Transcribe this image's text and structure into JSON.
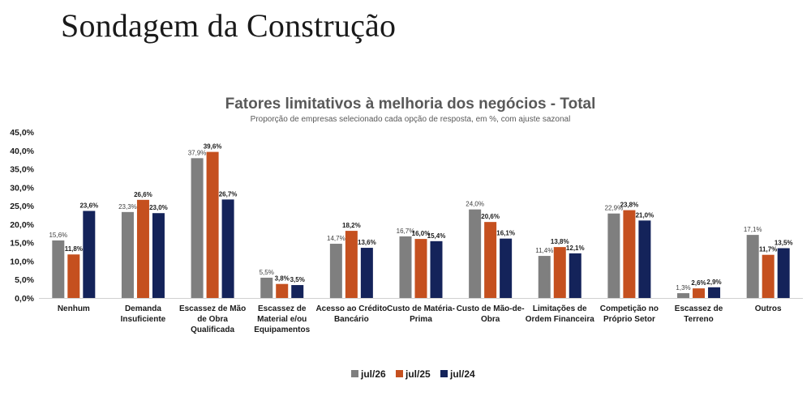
{
  "slide_title": "Sondagem da Construção",
  "chart_data": {
    "type": "bar",
    "title": "Fatores limitativos à melhoria dos negócios - Total",
    "subtitle": "Proporção de empresas selecionado cada opção de resposta, em %, com ajuste sazonal",
    "categories": [
      [
        "Nenhum"
      ],
      [
        "Demanda",
        "Insuficiente"
      ],
      [
        "Escassez de Mão",
        "de Obra",
        "Qualificada"
      ],
      [
        "Escassez de",
        "Material e/ou",
        "Equipamentos"
      ],
      [
        "Acesso ao Crédito",
        "Bancário"
      ],
      [
        "Custo de Matéria-",
        "Prima"
      ],
      [
        "Custo de Mão-de-",
        "Obra"
      ],
      [
        "Limitações de",
        "Ordem Financeira"
      ],
      [
        "Competição no",
        "Próprio Setor"
      ],
      [
        "Escassez de",
        "Terreno"
      ],
      [
        "Outros"
      ]
    ],
    "series": [
      {
        "name": "jul/26",
        "color": "#7f7f7f",
        "values": [
          15.6,
          23.3,
          37.9,
          5.5,
          14.7,
          16.7,
          24.0,
          11.4,
          22.9,
          1.3,
          17.1
        ],
        "labels": [
          "15,6%",
          "23,3%",
          "37,9%",
          "5,5%",
          "14,7%",
          "16,7%",
          "24,0%",
          "11,4%",
          "22,9%",
          "1,3%",
          "17,1%"
        ]
      },
      {
        "name": "jul/25",
        "color": "#c5501f",
        "values": [
          11.8,
          26.6,
          39.6,
          3.8,
          18.2,
          16.0,
          20.6,
          13.8,
          23.8,
          2.6,
          11.7
        ],
        "labels": [
          "11,8%",
          "26,6%",
          "39,6%",
          "3,8%",
          "18,2%",
          "16,0%",
          "20,6%",
          "13,8%",
          "23,8%",
          "2,6%",
          "11,7%"
        ]
      },
      {
        "name": "jul/24",
        "color": "#14235a",
        "values": [
          23.6,
          23.0,
          26.7,
          3.5,
          13.6,
          15.4,
          16.1,
          12.1,
          21.0,
          2.9,
          13.5
        ],
        "labels": [
          "23,6%",
          "23,0%",
          "26,7%",
          "3,5%",
          "13,6%",
          "15,4%",
          "16,1%",
          "12,1%",
          "21,0%",
          "2,9%",
          "13,5%"
        ]
      }
    ],
    "ylim": [
      0,
      45
    ],
    "yticks": [
      "0,0%",
      "5,0%",
      "10,0%",
      "15,0%",
      "20,0%",
      "25,0%",
      "30,0%",
      "35,0%",
      "40,0%",
      "45,0%"
    ],
    "ytick_step": 5,
    "grid": false,
    "legend_position": "bottom"
  }
}
